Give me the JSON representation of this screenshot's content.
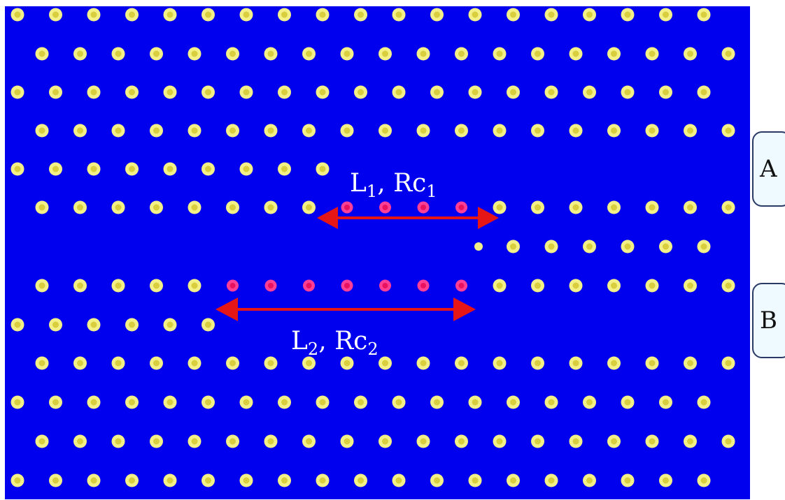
{
  "colors": {
    "background": "#0000ee",
    "rod": "#f3f088",
    "rod_core": "#d8ce3e",
    "defect_rod": "#ff3f95",
    "defect_rod_core": "#e8125f",
    "arrow": "#e61616",
    "label_text": "#ffffff"
  },
  "labels": {
    "segment_1": {
      "L": "L",
      "L_sub": "1",
      "Rc": "Rc",
      "Rc_sub": "1",
      "separator": ", "
    },
    "segment_2": {
      "L": "L",
      "L_sub": "2",
      "Rc": "Rc",
      "Rc_sub": "2",
      "separator": ", "
    }
  },
  "ports": {
    "a": "A",
    "b": "B"
  }
}
